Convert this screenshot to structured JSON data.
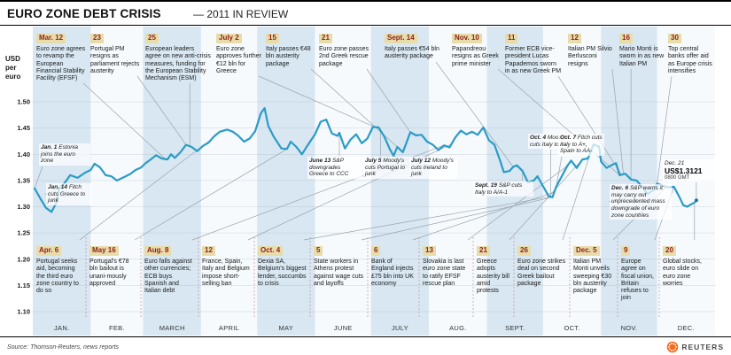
{
  "title": {
    "main": "EURO ZONE DEBT CRISIS",
    "sub": "— 2011 IN REVIEW"
  },
  "y_axis": {
    "unit_label": "USD\nper\neuro"
  },
  "colors": {
    "line": "#2b9bc6",
    "line_end": "#16789e",
    "stripe": "#d8e7f2",
    "stripe_alt": "#f6fafd",
    "date_chip_bg": "#e9dcab",
    "date_chip_text": "#8e1f16",
    "leader": "#9aa4ac",
    "separator": "#cf9a9a",
    "grid": "#aab6bf",
    "logo": "#f26a21"
  },
  "top_events": [
    {
      "date": "Mar. 12",
      "day": 71,
      "text": "Euro zone agrees to revamp the European Financial Stability Facility (EFSF)"
    },
    {
      "date": "23",
      "day": 82,
      "text": "Portugal PM resigns as parliament rejects austerity"
    },
    {
      "date": "25",
      "day": 84,
      "text": "European leaders agree on new anti-crisis measures, funding for the European Stability Mechanism (ESM)"
    },
    {
      "date": "July 2",
      "day": 183,
      "text": "Euro zone approves further €12 bln for Greece"
    },
    {
      "date": "15",
      "day": 196,
      "text": "Italy passes €48 bln austerity package"
    },
    {
      "date": "21",
      "day": 202,
      "text": "Euro zone passes 2nd Greek rescue package"
    },
    {
      "date": "Sept. 14",
      "day": 257,
      "text": "Italy passes €54 bln austerity package"
    },
    {
      "date": "Nov. 10",
      "day": 314,
      "text": "Papandreou resigns as Greek prime minister"
    },
    {
      "date": "11",
      "day": 315,
      "text": "Former ECB vice-president Lucas Papademos sworn in as new Greek PM"
    },
    {
      "date": "12",
      "day": 316,
      "text": "Italian PM Silvio Berlusconi resigns"
    },
    {
      "date": "16",
      "day": 320,
      "text": "Mario Monti is sworn in as new Italian PM"
    },
    {
      "date": "30",
      "day": 334,
      "text": "Top central banks offer aid as Europe crisis intensifies"
    }
  ],
  "bottom_events": [
    {
      "date": "Apr. 6",
      "day": 96,
      "text": "Portugal seeks aid, becoming the third euro zone country to do so"
    },
    {
      "date": "May 16",
      "day": 136,
      "text": "Portugal's €78 bln bailout is unani-mously approved"
    },
    {
      "date": "Aug. 8",
      "day": 220,
      "text": "Euro falls against other currencies; ECB buys Spanish and Italian debt"
    },
    {
      "date": "12",
      "day": 224,
      "text": "France, Spain, Italy and Belgium impose short-selling ban"
    },
    {
      "date": "Oct. 4",
      "day": 277,
      "text": "Dexia SA, Belgium's biggest lender, succumbs to crisis"
    },
    {
      "date": "5",
      "day": 278,
      "text": "State workers in Athens protest against wage cuts and layoffs"
    },
    {
      "date": "6",
      "day": 279,
      "text": "Bank of England injects £75 bln into UK economy"
    },
    {
      "date": "13",
      "day": 286,
      "text": "Slovakia is last euro zone state to ratify EFSF rescue plan"
    },
    {
      "date": "21",
      "day": 294,
      "text": "Greece adopts austerity bill amid protests"
    },
    {
      "date": "26",
      "day": 299,
      "text": "Euro zone strikes deal on second Greek bailout package"
    },
    {
      "date": "Dec. 5",
      "day": 339,
      "text": "Italian PM Monti unveils sweeping €30 bln austerity package"
    },
    {
      "date": "9",
      "day": 343,
      "text": "Europe agree on fiscal union, Britain refuses to join"
    },
    {
      "date": "20",
      "day": 354,
      "text": "Global stocks, euro slide on euro zone worries"
    }
  ],
  "notes": [
    {
      "date": "Jan. 1",
      "day": 1,
      "text": "Estonia joins the euro zone"
    },
    {
      "date": "Jan. 14",
      "day": 14,
      "text": "Fitch cuts Greece to junk"
    },
    {
      "date": "June 13",
      "day": 164,
      "text": "S&P downgrades Greece to CCC"
    },
    {
      "date": "July 5",
      "day": 186,
      "text": "Moody's cuts Portugal to junk"
    },
    {
      "date": "July 12",
      "day": 193,
      "text": "Moody's cuts Ireland to junk"
    },
    {
      "date": "Sept. 19",
      "day": 262,
      "text": "S&P cuts Italy to A/A-1"
    },
    {
      "date": "Oct. 4",
      "day": 277,
      "text": "Moody's cuts Italy to A2"
    },
    {
      "date": "Oct. 7",
      "day": 280,
      "text": "Fitch cuts Italy to A+, Spain to AA-"
    },
    {
      "date": "Dec. 6",
      "day": 340,
      "text": "S&P warns it may carry out unprecedented mass downgrade of euro zone countries"
    }
  ],
  "end_label": {
    "date": "Dec. 21",
    "day": 355,
    "value_label": "US$1.3121",
    "time": "0800 GMT"
  },
  "footer": {
    "source": "Source: Thomson-Reuters, news reports",
    "logo_text": "REUTERS"
  },
  "chart_data": {
    "type": "line",
    "title": "EURO ZONE DEBT CRISIS — 2011 IN REVIEW",
    "ylabel": "USD per euro",
    "ylim": [
      1.1,
      1.5
    ],
    "yticks": [
      1.1,
      1.15,
      1.2,
      1.25,
      1.3,
      1.35,
      1.4,
      1.45,
      1.5
    ],
    "categories": [
      "JAN.",
      "FEB.",
      "MARCH",
      "APRIL",
      "MAY",
      "JUNE",
      "JULY",
      "AUG.",
      "SEPT.",
      "OCT.",
      "NOV.",
      "DEC."
    ],
    "x_unit": "day_of_year_2011",
    "grid": true,
    "legend": "none",
    "end_point": {
      "date": "Dec. 21",
      "value": 1.3121
    },
    "series": [
      {
        "name": "USD per euro",
        "points": [
          [
            1,
            1.335
          ],
          [
            4,
            1.316
          ],
          [
            7,
            1.298
          ],
          [
            10,
            1.29
          ],
          [
            13,
            1.31
          ],
          [
            14,
            1.335
          ],
          [
            17,
            1.345
          ],
          [
            20,
            1.36
          ],
          [
            24,
            1.355
          ],
          [
            28,
            1.365
          ],
          [
            31,
            1.37
          ],
          [
            33,
            1.382
          ],
          [
            36,
            1.375
          ],
          [
            39,
            1.36
          ],
          [
            42,
            1.358
          ],
          [
            45,
            1.35
          ],
          [
            48,
            1.355
          ],
          [
            52,
            1.362
          ],
          [
            55,
            1.37
          ],
          [
            58,
            1.375
          ],
          [
            60,
            1.382
          ],
          [
            63,
            1.39
          ],
          [
            66,
            1.398
          ],
          [
            69,
            1.392
          ],
          [
            72,
            1.39
          ],
          [
            74,
            1.4
          ],
          [
            76,
            1.393
          ],
          [
            79,
            1.404
          ],
          [
            82,
            1.418
          ],
          [
            85,
            1.414
          ],
          [
            88,
            1.406
          ],
          [
            91,
            1.416
          ],
          [
            94,
            1.422
          ],
          [
            97,
            1.434
          ],
          [
            100,
            1.443
          ],
          [
            104,
            1.447
          ],
          [
            107,
            1.443
          ],
          [
            110,
            1.435
          ],
          [
            113,
            1.424
          ],
          [
            116,
            1.43
          ],
          [
            119,
            1.444
          ],
          [
            122,
            1.478
          ],
          [
            124,
            1.488
          ],
          [
            126,
            1.454
          ],
          [
            129,
            1.433
          ],
          [
            133,
            1.411
          ],
          [
            136,
            1.41
          ],
          [
            138,
            1.424
          ],
          [
            141,
            1.414
          ],
          [
            144,
            1.4
          ],
          [
            147,
            1.417
          ],
          [
            151,
            1.438
          ],
          [
            154,
            1.462
          ],
          [
            157,
            1.466
          ],
          [
            160,
            1.44
          ],
          [
            163,
            1.435
          ],
          [
            164,
            1.441
          ],
          [
            167,
            1.411
          ],
          [
            170,
            1.428
          ],
          [
            173,
            1.438
          ],
          [
            176,
            1.421
          ],
          [
            179,
            1.43
          ],
          [
            182,
            1.452
          ],
          [
            185,
            1.451
          ],
          [
            188,
            1.434
          ],
          [
            191,
            1.41
          ],
          [
            193,
            1.397
          ],
          [
            195,
            1.414
          ],
          [
            198,
            1.404
          ],
          [
            202,
            1.442
          ],
          [
            205,
            1.436
          ],
          [
            208,
            1.437
          ],
          [
            211,
            1.424
          ],
          [
            214,
            1.418
          ],
          [
            217,
            1.408
          ],
          [
            220,
            1.417
          ],
          [
            223,
            1.413
          ],
          [
            226,
            1.432
          ],
          [
            229,
            1.445
          ],
          [
            232,
            1.438
          ],
          [
            235,
            1.443
          ],
          [
            238,
            1.437
          ],
          [
            241,
            1.451
          ],
          [
            244,
            1.427
          ],
          [
            247,
            1.418
          ],
          [
            250,
            1.388
          ],
          [
            252,
            1.366
          ],
          [
            255,
            1.368
          ],
          [
            257,
            1.376
          ],
          [
            259,
            1.379
          ],
          [
            262,
            1.368
          ],
          [
            265,
            1.346
          ],
          [
            268,
            1.35
          ],
          [
            270,
            1.358
          ],
          [
            273,
            1.339
          ],
          [
            276,
            1.32
          ],
          [
            278,
            1.318
          ],
          [
            280,
            1.338
          ],
          [
            283,
            1.358
          ],
          [
            286,
            1.378
          ],
          [
            288,
            1.388
          ],
          [
            291,
            1.374
          ],
          [
            294,
            1.39
          ],
          [
            297,
            1.392
          ],
          [
            300,
            1.419
          ],
          [
            303,
            1.414
          ],
          [
            304,
            1.386
          ],
          [
            307,
            1.374
          ],
          [
            310,
            1.38
          ],
          [
            312,
            1.383
          ],
          [
            314,
            1.36
          ],
          [
            317,
            1.363
          ],
          [
            320,
            1.352
          ],
          [
            323,
            1.35
          ],
          [
            326,
            1.338
          ],
          [
            329,
            1.324
          ],
          [
            332,
            1.332
          ],
          [
            334,
            1.344
          ],
          [
            337,
            1.34
          ],
          [
            340,
            1.337
          ],
          [
            343,
            1.338
          ],
          [
            346,
            1.318
          ],
          [
            348,
            1.303
          ],
          [
            350,
            1.3
          ],
          [
            352,
            1.304
          ],
          [
            354,
            1.308
          ],
          [
            355,
            1.3121
          ]
        ]
      }
    ]
  }
}
